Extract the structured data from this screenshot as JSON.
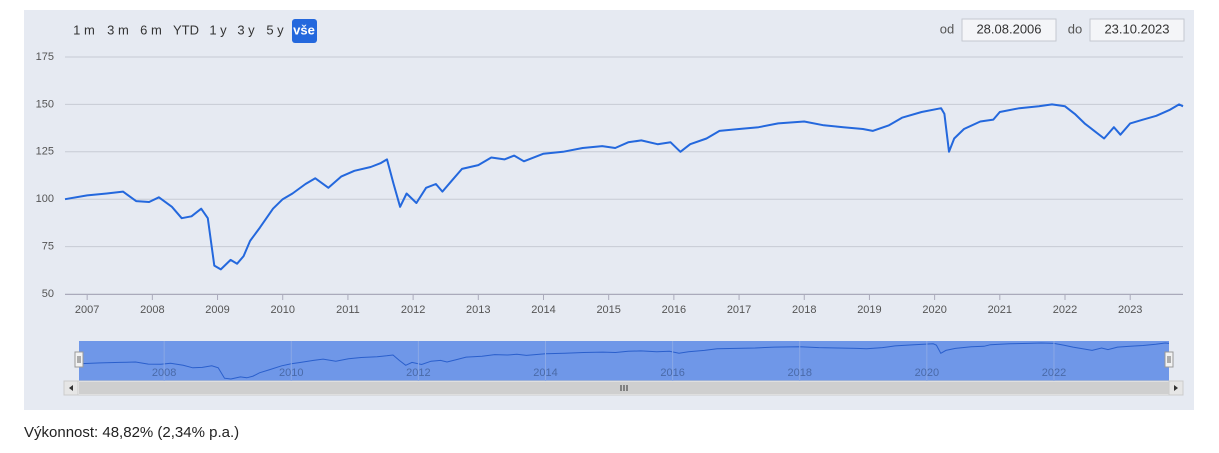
{
  "chart_data": {
    "type": "line",
    "range_buttons": [
      "1 m",
      "3 m",
      "6 m",
      "YTD",
      "1 y",
      "3 y",
      "5 y",
      "vše"
    ],
    "selected_button": 7,
    "from_label": "od",
    "from_date": "28.08.2006",
    "to_label": "do",
    "to_date": "23.10.2023",
    "x": [
      2006.66,
      2007.0,
      2007.3,
      2007.55,
      2007.75,
      2007.95,
      2008.1,
      2008.3,
      2008.45,
      2008.6,
      2008.75,
      2008.85,
      2008.95,
      2009.05,
      2009.2,
      2009.3,
      2009.4,
      2009.5,
      2009.65,
      2009.85,
      2010.0,
      2010.15,
      2010.35,
      2010.5,
      2010.7,
      2010.9,
      2011.1,
      2011.35,
      2011.5,
      2011.6,
      2011.7,
      2011.8,
      2011.9,
      2012.05,
      2012.2,
      2012.35,
      2012.45,
      2012.6,
      2012.75,
      2013.0,
      2013.2,
      2013.4,
      2013.55,
      2013.7,
      2014.0,
      2014.3,
      2014.6,
      2014.9,
      2015.1,
      2015.3,
      2015.5,
      2015.75,
      2015.95,
      2016.1,
      2016.25,
      2016.5,
      2016.7,
      2017.0,
      2017.3,
      2017.6,
      2018.0,
      2018.3,
      2018.6,
      2018.9,
      2019.05,
      2019.3,
      2019.5,
      2019.8,
      2020.1,
      2020.15,
      2020.22,
      2020.3,
      2020.45,
      2020.7,
      2020.9,
      2021.0,
      2021.3,
      2021.6,
      2021.8,
      2022.0,
      2022.15,
      2022.3,
      2022.45,
      2022.6,
      2022.75,
      2022.85,
      2023.0,
      2023.2,
      2023.4,
      2023.6,
      2023.75,
      2023.81
    ],
    "series": [
      {
        "color": "#2468dd",
        "values": [
          100,
          102,
          103,
          104,
          99,
          98.5,
          101,
          96,
          90,
          91,
          95,
          90,
          65,
          63,
          68,
          66,
          70,
          78,
          85,
          95,
          100,
          103,
          108,
          111,
          106,
          112,
          115,
          117,
          119,
          121,
          108,
          96,
          103,
          98,
          106,
          108,
          104,
          110,
          116,
          118,
          122,
          121,
          123,
          120,
          124,
          125,
          127,
          128,
          127,
          130,
          131,
          129,
          130,
          125,
          129,
          132,
          136,
          137,
          138,
          140,
          141,
          139,
          138,
          137,
          136,
          139,
          143,
          146,
          148,
          145,
          125,
          132,
          137,
          141,
          142,
          146,
          148,
          149,
          150,
          149,
          145,
          140,
          136,
          132,
          138,
          134,
          140,
          142,
          144,
          147,
          150,
          149
        ]
      }
    ],
    "xlim": [
      2006.66,
      2023.81
    ],
    "ylim": [
      50,
      175
    ],
    "xticks": [
      2007,
      2008,
      2009,
      2010,
      2011,
      2012,
      2013,
      2014,
      2015,
      2016,
      2017,
      2018,
      2019,
      2020,
      2021,
      2022,
      2023
    ],
    "yticks": [
      50,
      75,
      100,
      125,
      150,
      175
    ],
    "grid": true,
    "navigator_xticks": [
      2008,
      2010,
      2012,
      2014,
      2016,
      2018,
      2020,
      2022
    ]
  },
  "performance": "Výkonnost: 48,82% (2,34% p.a.)"
}
